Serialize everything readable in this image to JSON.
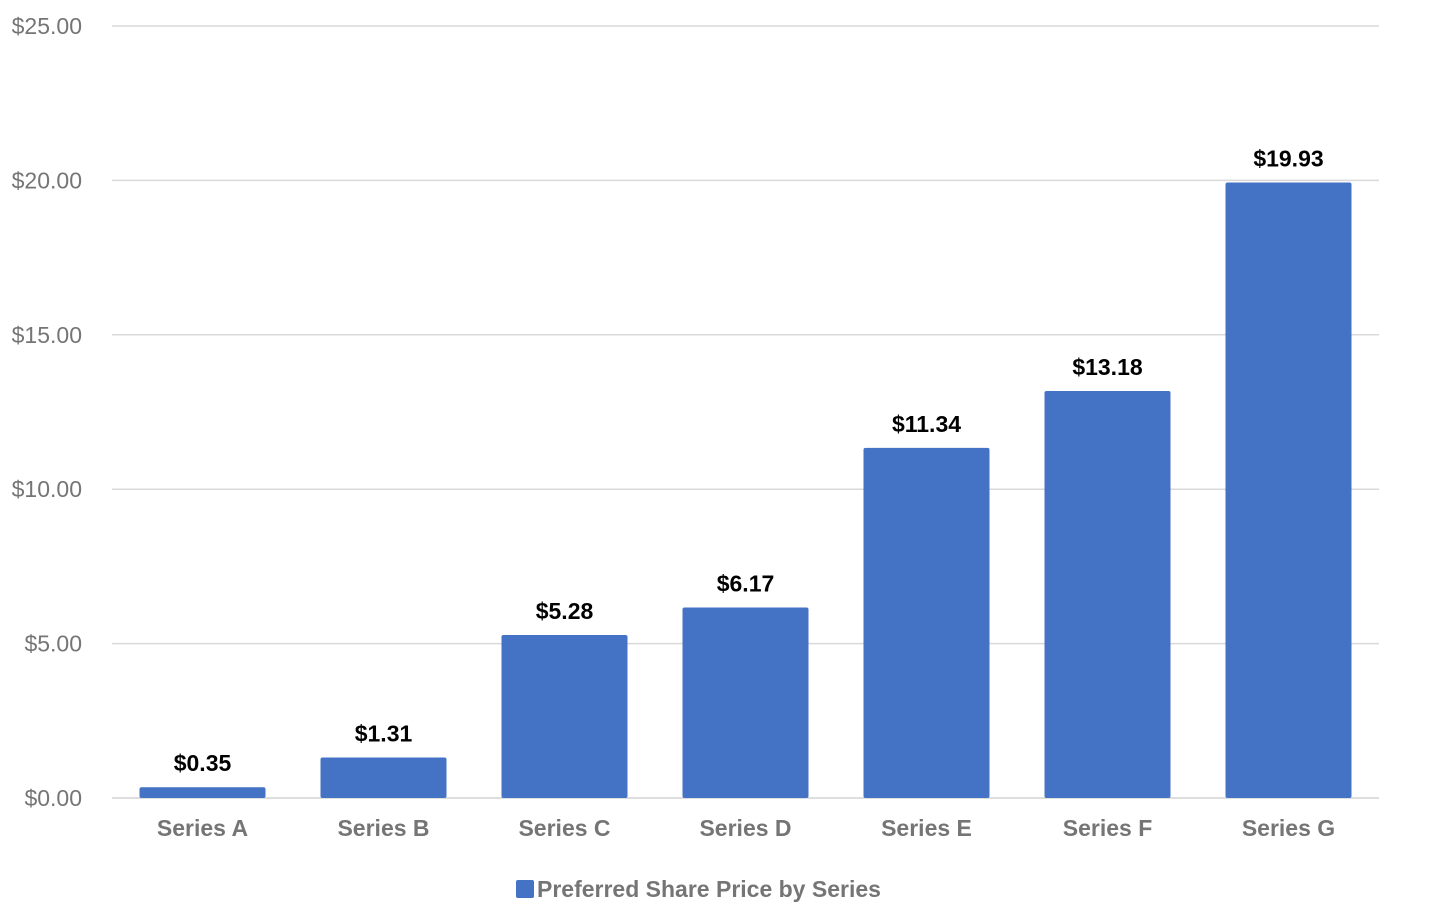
{
  "chart_data": {
    "type": "bar",
    "categories": [
      "Series A",
      "Series B",
      "Series C",
      "Series D",
      "Series E",
      "Series F",
      "Series G"
    ],
    "series": [
      {
        "name": "Preferred Share Price by Series",
        "values": [
          0.35,
          1.31,
          5.28,
          6.17,
          11.34,
          13.18,
          19.93
        ],
        "data_labels": [
          "$0.35",
          "$1.31",
          "$5.28",
          "$6.17",
          "$11.34",
          "$13.18",
          "$19.93"
        ]
      }
    ],
    "ylim": [
      0,
      25
    ],
    "yticks": [
      0,
      5,
      10,
      15,
      20,
      25
    ],
    "ytick_labels": [
      "$0.00",
      "$5.00",
      "$10.00",
      "$15.00",
      "$20.00",
      "$25.00"
    ],
    "grid": true,
    "legend": {
      "position": "bottom",
      "label": "Preferred Share Price by Series"
    },
    "colors": {
      "bar": "#4472c4",
      "grid": "#d9d9d9",
      "axis_text": "#757575",
      "data_label": "#000000"
    }
  }
}
